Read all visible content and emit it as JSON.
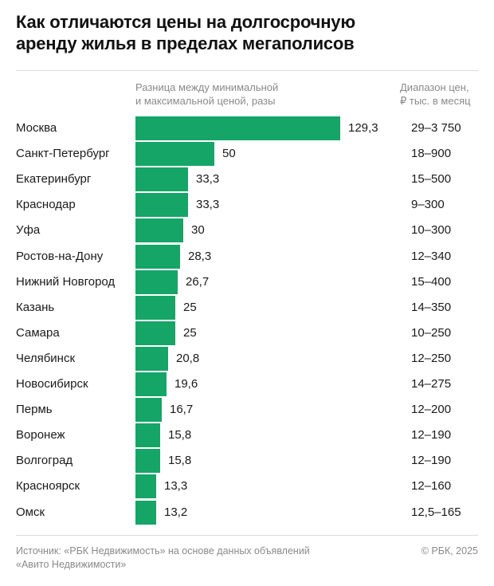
{
  "title_lines": [
    "Как отличаются цены на долгосрочную",
    "аренду жилья в пределах мегаполисов"
  ],
  "column_headers": {
    "bars": [
      "Разница между минимальной",
      "и максимальной ценой, разы"
    ],
    "range": [
      "Диапазон цен,",
      "₽ тыс. в месяц"
    ]
  },
  "chart_data": {
    "type": "bar",
    "orientation": "horizontal",
    "title": "Как отличаются цены на долгосрочную аренду жилья в пределах мегаполисов",
    "categories": [
      "Москва",
      "Санкт-Петербург",
      "Екатеринбург",
      "Краснодар",
      "Уфа",
      "Ростов-на-Дону",
      "Нижний Новгород",
      "Казань",
      "Самара",
      "Челябинск",
      "Новосибирск",
      "Пермь",
      "Воронеж",
      "Волгоград",
      "Красноярск",
      "Омск"
    ],
    "values": [
      129.3,
      50,
      33.3,
      33.3,
      30,
      28.3,
      26.7,
      25,
      25,
      20.8,
      19.6,
      16.7,
      15.8,
      15.8,
      13.3,
      13.2
    ],
    "value_labels": [
      "129,3",
      "50",
      "33,3",
      "33,3",
      "30",
      "28,3",
      "26,7",
      "25",
      "25",
      "20,8",
      "19,6",
      "16,7",
      "15,8",
      "15,8",
      "13,3",
      "13,2"
    ],
    "ranges": [
      "29–3 750",
      "18–900",
      "15–500",
      "9–300",
      "10–300",
      "12–340",
      "15–400",
      "14–350",
      "10–250",
      "12–250",
      "14–275",
      "12–200",
      "12–190",
      "12–190",
      "12–160",
      "12,5–165"
    ],
    "bar_color": "#15a567",
    "grid": false,
    "legend": "none"
  },
  "footer": {
    "source_lines": [
      "Источник: «РБК Недвижимость» на основе данных объявлений",
      "«Авито Недвижимости»"
    ],
    "copyright": "© РБК, 2025"
  }
}
